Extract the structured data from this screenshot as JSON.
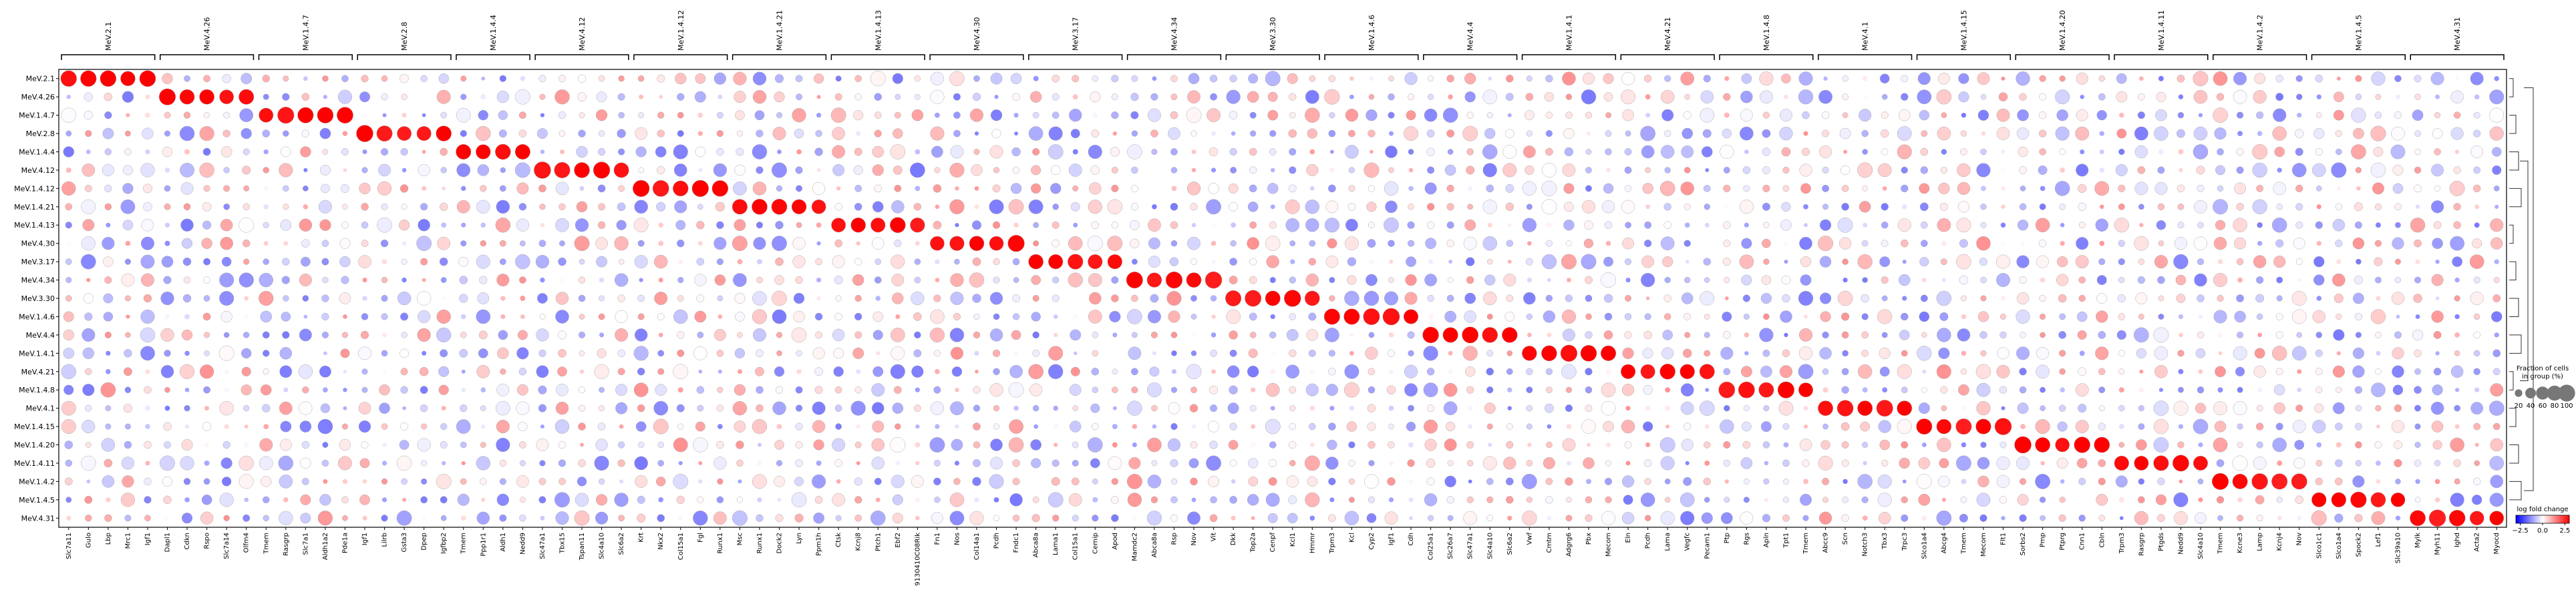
{
  "chart_data": {
    "type": "dotplot",
    "groups": [
      "MeV.2.1",
      "MeV.4.26",
      "MeV.1.4.7",
      "MeV.2.8",
      "MeV.1.4.4",
      "MeV.4.12",
      "MeV.1.4.12",
      "MeV.1.4.21",
      "MeV.1.4.13",
      "MeV.4.30",
      "MeV.3.17",
      "MeV.4.34",
      "MeV.3.30",
      "MeV.1.4.6",
      "MeV.4.4",
      "MeV.1.4.1",
      "MeV.4.21",
      "MeV.1.4.8",
      "MeV.4.1",
      "MeV.1.4.15",
      "MeV.1.4.20",
      "MeV.1.4.11",
      "MeV.1.4.2",
      "MeV.1.4.5",
      "MeV.4.31"
    ],
    "gene_groups": [
      {
        "label": "MeV.2.1",
        "genes": [
          "Slc7a11",
          "Gulo",
          "Lbp",
          "Mrc1",
          "Igf1"
        ]
      },
      {
        "label": "MeV.4.26",
        "genes": [
          "Dapl1",
          "Cdkn",
          "Rspo",
          "Slc7a14",
          "Olfm4"
        ]
      },
      {
        "label": "MeV.1.4.7",
        "genes": [
          "Tmem",
          "Rasgrp",
          "Slc7a1",
          "Aldh1a2",
          "Pde1a"
        ]
      },
      {
        "label": "MeV.2.8",
        "genes": [
          "Igf1",
          "Lilrb",
          "Gsta3",
          "Dpep",
          "Igfbp2"
        ]
      },
      {
        "label": "MeV.1.4.4",
        "genes": [
          "Tmem",
          "Ppp1r1",
          "Aldh1",
          "Nedd9"
        ]
      },
      {
        "label": "MeV.4.12",
        "genes": [
          "Slc47a1",
          "Tbx15",
          "Tspan11",
          "Slc4a10",
          "Slc6a2"
        ]
      },
      {
        "label": "MeV.1.4.12",
        "genes": [
          "Krt",
          "Nkx2",
          "Col15a1",
          "Fgl",
          "Runx1"
        ]
      },
      {
        "label": "MeV.1.4.21",
        "genes": [
          "Msc",
          "Runx1",
          "Dock2",
          "Lyn",
          "Ppm1h"
        ]
      },
      {
        "label": "MeV.1.4.13",
        "genes": [
          "Ctsk",
          "Kcnj8",
          "Ptch1",
          "Ebf2",
          "9130410C08Rik"
        ]
      },
      {
        "label": "MeV.4.30",
        "genes": [
          "Fn1",
          "Nos",
          "Col14a1",
          "Pcdh",
          "Fndc1"
        ]
      },
      {
        "label": "MeV.3.17",
        "genes": [
          "Abca8a",
          "Lama1",
          "Col15a1",
          "Cemip",
          "Apod"
        ]
      },
      {
        "label": "MeV.4.34",
        "genes": [
          "Mamdc2",
          "Abca8a",
          "Rsp",
          "Nov",
          "Vit"
        ]
      },
      {
        "label": "MeV.3.30",
        "genes": [
          "Dkk",
          "Top2a",
          "Cenpf",
          "Kcl1",
          "Hmmr"
        ]
      },
      {
        "label": "MeV.1.4.6",
        "genes": [
          "Trpm3",
          "Kcl",
          "Cyp2",
          "Igf1",
          "Cdh"
        ]
      },
      {
        "label": "MeV.4.4",
        "genes": [
          "Col25a1",
          "Slc26a7",
          "Slc47a1",
          "Slc4a10",
          "Slc6a2"
        ]
      },
      {
        "label": "MeV.1.4.1",
        "genes": [
          "Vwf",
          "Cmtm",
          "Adgrg6",
          "Pbx",
          "Mecom"
        ]
      },
      {
        "label": "MeV.4.21",
        "genes": [
          "Eln",
          "Pcdh",
          "Lama",
          "Vegfc",
          "Pecam1"
        ]
      },
      {
        "label": "MeV.1.4.8",
        "genes": [
          "Ptp",
          "Rgs",
          "Apln",
          "Tpt1",
          "Tmem"
        ]
      },
      {
        "label": "MeV.4.1",
        "genes": [
          "Abcc9",
          "Scn",
          "Notch3",
          "Tbx3",
          "Trpc3"
        ]
      },
      {
        "label": "MeV.1.4.15",
        "genes": [
          "Slco1a4",
          "Abcg4",
          "Tmem",
          "Mecom",
          "Flt1"
        ]
      },
      {
        "label": "MeV.1.4.20",
        "genes": [
          "Sorbs2",
          "Pmp",
          "Ptprg",
          "Cnn1",
          "Cbln"
        ]
      },
      {
        "label": "MeV.1.4.11",
        "genes": [
          "Trpm3",
          "Rasgrp",
          "Ptgds",
          "Nedd9",
          "Slc4a10"
        ]
      },
      {
        "label": "MeV.1.4.2",
        "genes": [
          "Tmem",
          "Kcne3",
          "Lamp",
          "Kcnj4",
          "Nov"
        ]
      },
      {
        "label": "MeV.1.4.5",
        "genes": [
          "Slco1c1",
          "Slco1a4",
          "Spock2",
          "Lef1",
          "Slc39a10"
        ]
      },
      {
        "label": "MeV.4.31",
        "genes": [
          "Mylk",
          "Myh11",
          "Ighd",
          "Acta2",
          "Myocd"
        ]
      }
    ],
    "value_scale": {
      "min": -2.5,
      "max": 2.5
    },
    "colorbar": {
      "label": "log fold change",
      "ticks": [
        "−2.5",
        "0.0",
        "2.5"
      ],
      "cmap": [
        "#0000ff",
        "#ffffff",
        "#ff0000"
      ]
    },
    "size_legend": {
      "title": "Fraction of cells\nin group (%)",
      "ticks": [
        20,
        40,
        60,
        80,
        100
      ]
    },
    "dendrogram": true
  }
}
